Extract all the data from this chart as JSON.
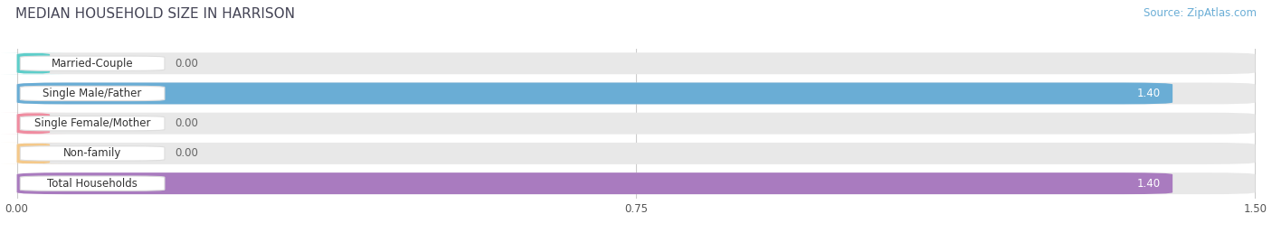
{
  "title": "MEDIAN HOUSEHOLD SIZE IN HARRISON",
  "source": "Source: ZipAtlas.com",
  "categories": [
    "Married-Couple",
    "Single Male/Father",
    "Single Female/Mother",
    "Non-family",
    "Total Households"
  ],
  "values": [
    0.0,
    1.4,
    0.0,
    0.0,
    1.4
  ],
  "bar_colors": [
    "#5ECECA",
    "#6AADD5",
    "#F08CA0",
    "#F5C98A",
    "#A97BBF"
  ],
  "bg_track_color": "#E8E8E8",
  "label_bg_color": "#FFFFFF",
  "xlim": [
    0.0,
    1.5
  ],
  "xticks": [
    0.0,
    0.75,
    1.5
  ],
  "xtick_labels": [
    "0.00",
    "0.75",
    "1.50"
  ],
  "value_label_inside_color": "#FFFFFF",
  "value_label_outside_color": "#666666",
  "title_fontsize": 11,
  "bar_label_fontsize": 8.5,
  "tick_fontsize": 8.5,
  "source_fontsize": 8.5,
  "fig_bg_color": "#FFFFFF",
  "grid_color": "#CCCCCC"
}
